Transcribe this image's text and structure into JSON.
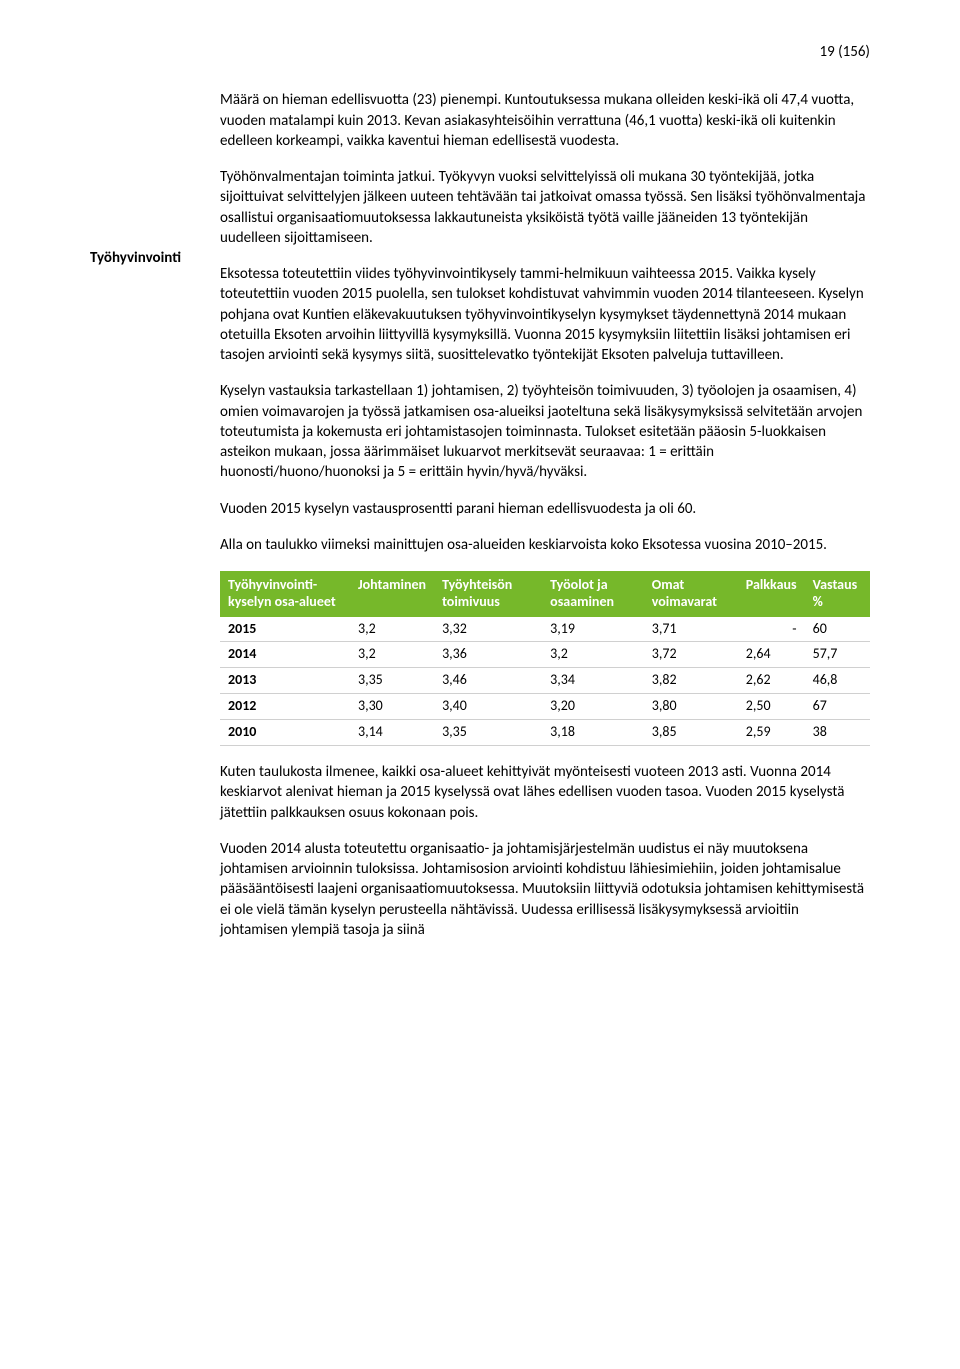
{
  "page_number": "19 (156)",
  "sidebar": {
    "label": "Työhyvinvointi"
  },
  "paragraphs": {
    "p1": "Määrä on hieman edellisvuotta (23) pienempi. Kuntoutuksessa mukana olleiden keski-ikä oli 47,4 vuotta, vuoden matalampi kuin 2013. Kevan asiakasyhteisöihin verrattuna (46,1 vuotta) keski-ikä oli kuitenkin edelleen korkeampi, vaikka kaventui hieman edellisestä vuodesta.",
    "p2": "Työhönvalmentajan toiminta jatkui. Työkyvyn vuoksi selvittelyissä oli mukana 30 työntekijää, jotka sijoittuivat selvittelyjen jälkeen uuteen tehtävään tai jatkoivat omassa työssä. Sen lisäksi työhönvalmentaja osallistui organisaatiomuutoksessa lakkautuneista yksiköistä työtä vaille jääneiden 13 työntekijän uudelleen sijoittamiseen.",
    "p3": "Eksotessa toteutettiin viides työhyvinvointikysely tammi-helmikuun vaihteessa 2015. Vaikka kysely toteutettiin vuoden 2015 puolella, sen tulokset kohdistuvat vahvimmin vuoden 2014 tilanteeseen. Kyselyn pohjana ovat Kuntien eläkevakuutuksen työhyvinvointikyselyn kysymykset täydennettynä 2014 mukaan otetuilla Eksoten arvoihin liittyvillä kysymyksillä. Vuonna 2015 kysymyksiin liitettiin lisäksi johtamisen eri tasojen arviointi sekä kysymys siitä, suosittelevatko työntekijät Eksoten palveluja tuttavilleen.",
    "p4": "Kyselyn vastauksia tarkastellaan 1) johtamisen, 2) työyhteisön toimivuuden, 3) työolojen ja osaamisen, 4) omien voimavarojen ja työssä jatkamisen osa-alueiksi jaoteltuna sekä lisäkysymyksissä selvitetään arvojen toteutumista ja kokemusta eri johtamistasojen toiminnasta. Tulokset esitetään pääosin 5-luokkaisen asteikon mukaan, jossa äärimmäiset lukuarvot merkitsevät seuraavaa: 1 = erittäin huonosti/huono/huonoksi ja 5 = erittäin hyvin/hyvä/hyväksi.",
    "p5": "Vuoden 2015 kyselyn vastausprosentti parani hieman edellisvuodesta ja oli 60.",
    "p6": "Alla on taulukko viimeksi mainittujen osa-alueiden keskiarvoista koko Eksotessa vuosina 2010–2015.",
    "p7": "Kuten taulukosta ilmenee, kaikki osa-alueet kehittyivät myönteisesti vuoteen 2013 asti. Vuonna 2014 keskiarvot alenivat hieman ja 2015 kyselyssä ovat lähes edellisen vuoden tasoa. Vuoden 2015 kyselystä jätettiin palkkauksen osuus kokonaan pois.",
    "p8": "Vuoden 2014 alusta toteutettu organisaatio- ja johtamisjärjestelmän uudistus ei näy muutoksena johtamisen arvioinnin tuloksissa. Johtamisosion arviointi kohdistuu lähiesimiehiin, joiden johtamisalue pääsääntöisesti laajeni organisaatiomuutoksessa. Muutoksiin liittyviä odotuksia johtamisen kehittymisestä ei ole vielä tämän kyselyn perusteella nähtävissä. Uudessa erillisessä lisäkysymyksessä arvioitiin johtamisen ylempiä tasoja ja siinä"
  },
  "table": {
    "type": "table",
    "header_bg": "#76b82a",
    "header_fg": "#ffffff",
    "row_border": "#d0d0d0",
    "columns": [
      "Työhyvinvointi-kyselyn osa-alueet",
      "Johtaminen",
      "Työyhteisön toimivuus",
      "Työolot ja osaaminen",
      "Omat voimavarat",
      "Palkkaus",
      "Vastaus %"
    ],
    "rows": [
      {
        "year": "2015",
        "c1": "3,2",
        "c2": "3,32",
        "c3": "3,19",
        "c4": "3,71",
        "c5": "-",
        "c6": "60"
      },
      {
        "year": "2014",
        "c1": "3,2",
        "c2": "3,36",
        "c3": "3,2",
        "c4": "3,72",
        "c5": "2,64",
        "c6": "57,7"
      },
      {
        "year": "2013",
        "c1": "3,35",
        "c2": "3,46",
        "c3": "3,34",
        "c4": "3,82",
        "c5": "2,62",
        "c6": "46,8"
      },
      {
        "year": "2012",
        "c1": "3,30",
        "c2": "3,40",
        "c3": "3,20",
        "c4": "3,80",
        "c5": "2,50",
        "c6": "67"
      },
      {
        "year": "2010",
        "c1": "3,14",
        "c2": "3,35",
        "c3": "3,18",
        "c4": "3,85",
        "c5": "2,59",
        "c6": "38"
      }
    ]
  }
}
